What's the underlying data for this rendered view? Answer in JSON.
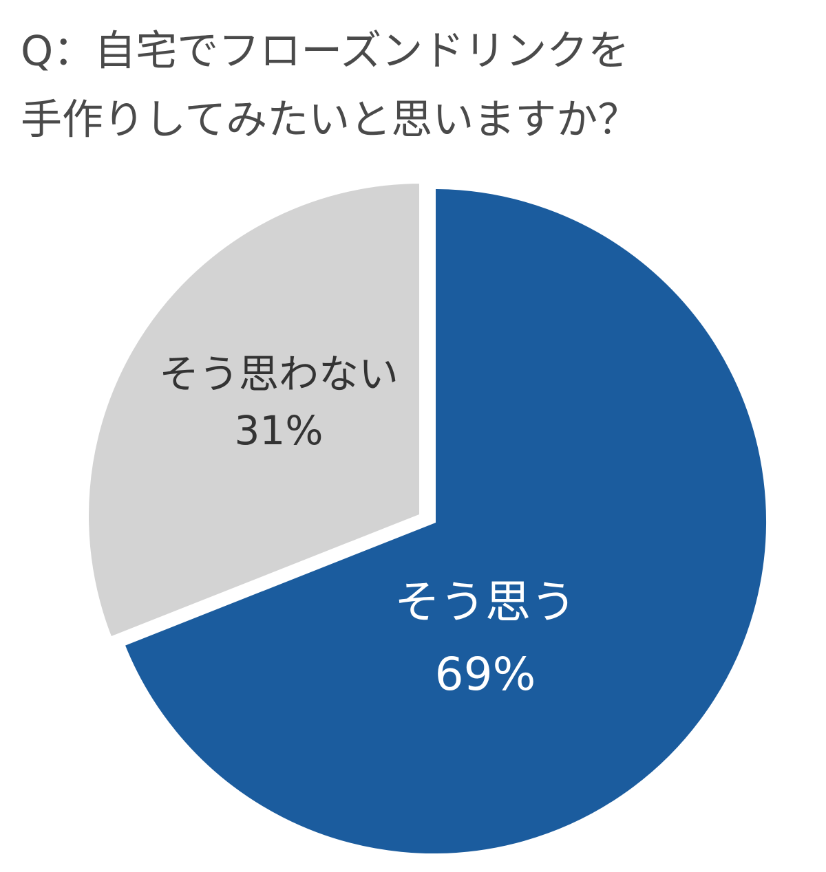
{
  "chart_data": {
    "type": "pie",
    "title": [
      "Q：自宅でフローズンドリンクを",
      "手作りしてみたいと思いますか？"
    ],
    "categories": [
      "そう思う",
      "そう思わない"
    ],
    "values": [
      69,
      31
    ],
    "value_labels": [
      "69%",
      "31%"
    ],
    "colors": [
      "#1b5c9e",
      "#d3d3d3"
    ],
    "label_colors": [
      "#ffffff",
      "#333333"
    ]
  }
}
